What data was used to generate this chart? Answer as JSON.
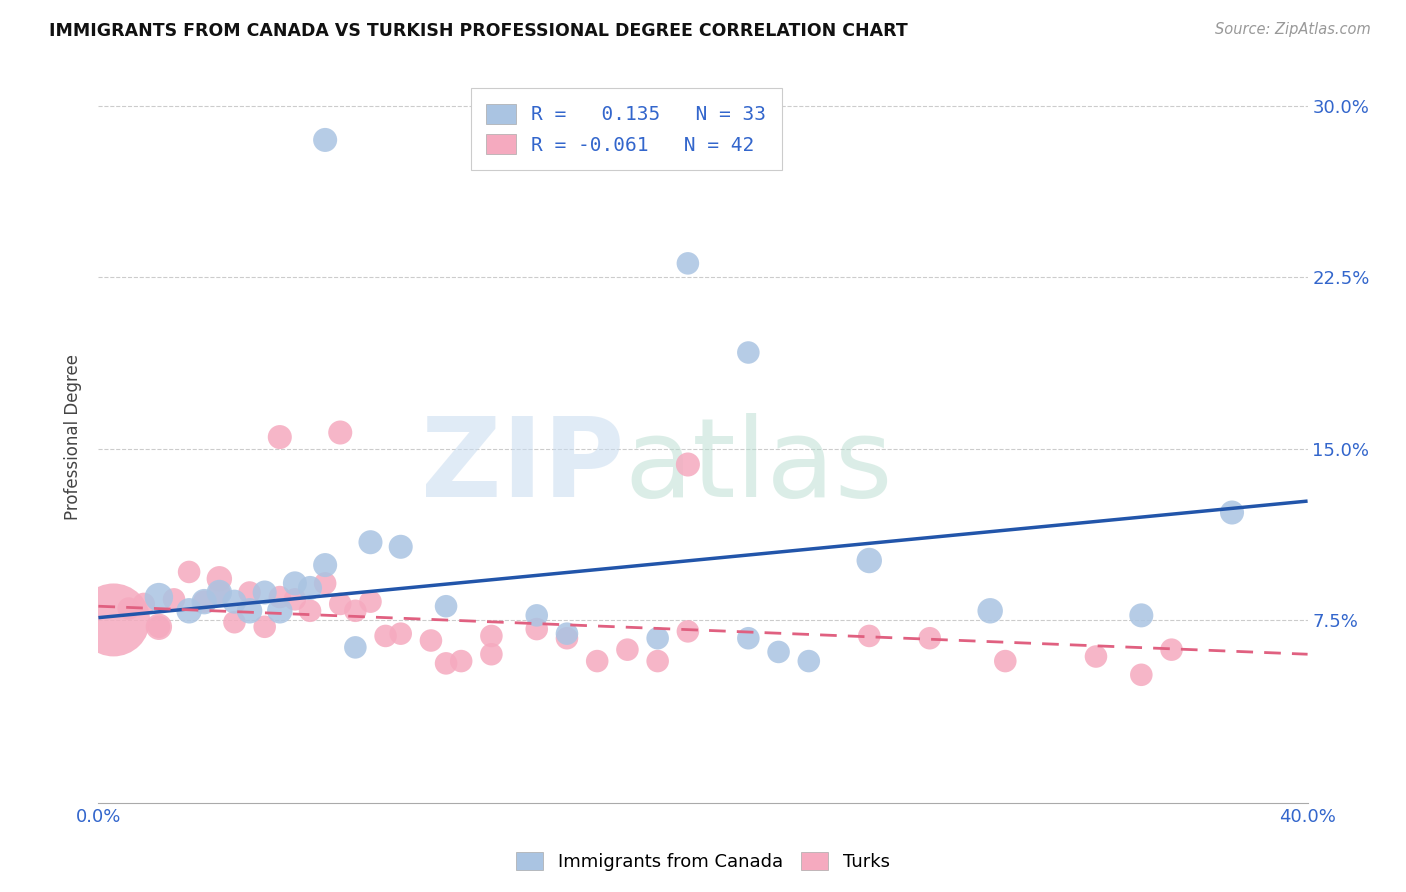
{
  "title": "IMMIGRANTS FROM CANADA VS TURKISH PROFESSIONAL DEGREE CORRELATION CHART",
  "source": "Source: ZipAtlas.com",
  "ylabel": "Professional Degree",
  "xlim": [
    0.0,
    0.4
  ],
  "ylim": [
    -0.005,
    0.315
  ],
  "xticks": [
    0.0,
    0.1,
    0.2,
    0.3,
    0.4
  ],
  "xtick_labels": [
    "0.0%",
    "",
    "",
    "",
    "40.0%"
  ],
  "ytick_vals": [
    0.0,
    0.075,
    0.15,
    0.225,
    0.3
  ],
  "ytick_labels": [
    "",
    "7.5%",
    "15.0%",
    "22.5%",
    "30.0%"
  ],
  "blue_color": "#aac4e2",
  "pink_color": "#f5aabf",
  "blue_line_color": "#2255aa",
  "pink_line_color": "#e06080",
  "blue_line_x0": 0.0,
  "blue_line_y0": 0.076,
  "blue_line_x1": 0.4,
  "blue_line_y1": 0.127,
  "pink_line_x0": 0.0,
  "pink_line_y0": 0.081,
  "pink_line_x1": 0.4,
  "pink_line_y1": 0.06,
  "blue_scatter_x": [
    0.075,
    0.195,
    0.215,
    0.02,
    0.03,
    0.035,
    0.04,
    0.045,
    0.05,
    0.055,
    0.06,
    0.065,
    0.07,
    0.075,
    0.085,
    0.09,
    0.1,
    0.115,
    0.145,
    0.155,
    0.185,
    0.215,
    0.225,
    0.235,
    0.255,
    0.295,
    0.345,
    0.375
  ],
  "blue_scatter_y": [
    0.285,
    0.231,
    0.192,
    0.085,
    0.079,
    0.083,
    0.087,
    0.083,
    0.079,
    0.087,
    0.079,
    0.091,
    0.089,
    0.099,
    0.063,
    0.109,
    0.107,
    0.081,
    0.077,
    0.069,
    0.067,
    0.067,
    0.061,
    0.057,
    0.101,
    0.079,
    0.077,
    0.122
  ],
  "blue_scatter_s": [
    25,
    22,
    22,
    35,
    28,
    28,
    28,
    25,
    28,
    25,
    28,
    25,
    25,
    25,
    22,
    25,
    25,
    22,
    22,
    22,
    22,
    22,
    22,
    22,
    28,
    28,
    25,
    25
  ],
  "pink_scatter_x": [
    0.01,
    0.015,
    0.02,
    0.025,
    0.03,
    0.035,
    0.04,
    0.045,
    0.05,
    0.055,
    0.06,
    0.065,
    0.07,
    0.075,
    0.08,
    0.085,
    0.09,
    0.095,
    0.1,
    0.11,
    0.12,
    0.13,
    0.145,
    0.155,
    0.165,
    0.175,
    0.185,
    0.195,
    0.255,
    0.275,
    0.3,
    0.33,
    0.345,
    0.355,
    0.005,
    0.02,
    0.04,
    0.06,
    0.08,
    0.115,
    0.13,
    0.195
  ],
  "pink_scatter_y": [
    0.08,
    0.082,
    0.072,
    0.084,
    0.096,
    0.083,
    0.087,
    0.074,
    0.087,
    0.072,
    0.085,
    0.084,
    0.079,
    0.091,
    0.082,
    0.079,
    0.083,
    0.068,
    0.069,
    0.066,
    0.057,
    0.06,
    0.071,
    0.067,
    0.057,
    0.062,
    0.057,
    0.143,
    0.068,
    0.067,
    0.057,
    0.059,
    0.051,
    0.062,
    0.075,
    0.072,
    0.093,
    0.155,
    0.157,
    0.056,
    0.068,
    0.07
  ],
  "pink_scatter_s": [
    22,
    22,
    22,
    22,
    22,
    22,
    22,
    22,
    22,
    22,
    22,
    22,
    22,
    22,
    22,
    22,
    22,
    22,
    22,
    22,
    22,
    22,
    22,
    22,
    22,
    22,
    22,
    25,
    22,
    22,
    22,
    22,
    22,
    22,
    230,
    30,
    28,
    25,
    25,
    22,
    22,
    22
  ]
}
